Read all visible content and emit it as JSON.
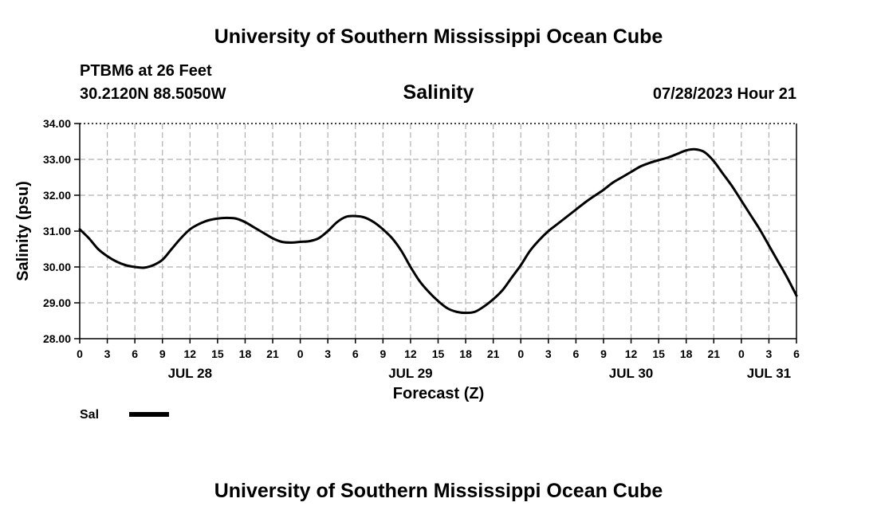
{
  "header": {
    "title": "University of Southern Mississippi Ocean Cube",
    "station": "PTBM6 at 26 Feet",
    "coords": "30.2120N  88.5050W",
    "timestamp": "07/28/2023 Hour 21"
  },
  "footer": {
    "title": "University of Southern Mississippi Ocean Cube"
  },
  "chart_data": {
    "type": "line",
    "title": "Salinity",
    "xlabel": "Forecast (Z)",
    "ylabel": "Salinity (psu)",
    "ylim": [
      28,
      34
    ],
    "xlim": [
      0,
      78
    ],
    "x_unit": "hours from 00Z Jul 28",
    "yticks": [
      "28.00",
      "29.00",
      "30.00",
      "31.00",
      "32.00",
      "33.00",
      "34.00"
    ],
    "xticks": [
      "0",
      "3",
      "6",
      "9",
      "12",
      "15",
      "18",
      "21",
      "0",
      "3",
      "6",
      "9",
      "12",
      "15",
      "18",
      "21",
      "0",
      "3",
      "6",
      "9",
      "12",
      "15",
      "18",
      "21",
      "0",
      "3",
      "6"
    ],
    "dates": [
      {
        "label": "JUL 28",
        "hour": 12
      },
      {
        "label": "JUL 29",
        "hour": 36
      },
      {
        "label": "JUL 30",
        "hour": 60
      },
      {
        "label": "JUL 31",
        "hour": 75
      }
    ],
    "grid": true,
    "legend": [
      {
        "name": "Sal",
        "color": "#000000"
      }
    ],
    "series": [
      {
        "name": "Sal",
        "color": "#000000",
        "x": [
          0,
          1,
          2,
          3,
          4,
          5,
          6,
          7,
          8,
          9,
          10,
          11,
          12,
          13,
          14,
          15,
          16,
          17,
          18,
          19,
          20,
          21,
          22,
          23,
          24,
          25,
          26,
          27,
          28,
          29,
          30,
          31,
          32,
          33,
          34,
          35,
          36,
          37,
          38,
          39,
          40,
          41,
          42,
          43,
          44,
          45,
          46,
          47,
          48,
          49,
          50,
          51,
          52,
          53,
          54,
          55,
          56,
          57,
          58,
          59,
          60,
          61,
          62,
          63,
          64,
          65,
          66,
          67,
          68,
          69,
          70,
          71,
          72,
          73,
          74,
          75,
          76,
          77,
          78
        ],
        "values": [
          31.05,
          30.8,
          30.5,
          30.3,
          30.15,
          30.05,
          30.0,
          29.98,
          30.05,
          30.2,
          30.5,
          30.8,
          31.05,
          31.2,
          31.3,
          31.35,
          31.37,
          31.35,
          31.25,
          31.1,
          30.95,
          30.8,
          30.7,
          30.68,
          30.7,
          30.72,
          30.8,
          31.0,
          31.25,
          31.4,
          31.42,
          31.38,
          31.25,
          31.05,
          30.8,
          30.45,
          30.0,
          29.6,
          29.3,
          29.05,
          28.85,
          28.75,
          28.72,
          28.75,
          28.9,
          29.1,
          29.35,
          29.7,
          30.05,
          30.45,
          30.75,
          31.0,
          31.2,
          31.4,
          31.6,
          31.8,
          31.98,
          32.15,
          32.35,
          32.5,
          32.65,
          32.8,
          32.9,
          32.98,
          33.05,
          33.15,
          33.25,
          33.28,
          33.2,
          32.95,
          32.6,
          32.25,
          31.85,
          31.45,
          31.05,
          30.6,
          30.15,
          29.7,
          29.2
        ]
      }
    ]
  }
}
